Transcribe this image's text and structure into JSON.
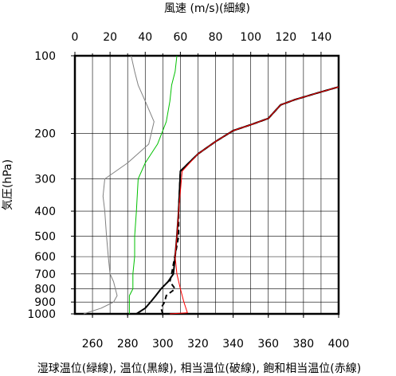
{
  "chart_data": {
    "type": "line",
    "top_axis_label": "風速 (m/s)(細線)",
    "bottom_axis_label": "湿球温位(緑線), 温位(黒線), 相当温位(破線), 飽和相当温位(赤線)",
    "ylabel": "気圧(hPa)",
    "y_log": true,
    "ylim": [
      1000,
      100
    ],
    "xlim_theta": [
      250,
      400
    ],
    "xlim_wind": [
      0,
      150
    ],
    "theta_ticks": [
      260,
      280,
      300,
      320,
      340,
      360,
      380,
      400
    ],
    "wind_ticks": [
      0,
      20,
      40,
      60,
      80,
      100,
      120,
      140
    ],
    "pressure_ticks": [
      100,
      200,
      300,
      400,
      500,
      600,
      700,
      800,
      900,
      1000
    ],
    "gridlines": true,
    "series": [
      {
        "axis": "wind",
        "color": "#808080",
        "points": [
          [
            5,
            1000
          ],
          [
            15,
            950
          ],
          [
            22,
            900
          ],
          [
            24,
            850
          ],
          [
            23,
            800
          ],
          [
            22,
            750
          ],
          [
            20,
            700
          ],
          [
            19,
            600
          ],
          [
            18,
            500
          ],
          [
            17,
            400
          ],
          [
            16,
            350
          ],
          [
            17,
            300
          ],
          [
            30,
            260
          ],
          [
            42,
            220
          ],
          [
            45,
            180
          ],
          [
            40,
            150
          ],
          [
            36,
            130
          ],
          [
            34,
            115
          ],
          [
            32,
            100
          ]
        ]
      },
      {
        "axis": "theta",
        "color": "#00c000",
        "points": [
          [
            281,
            1000
          ],
          [
            281,
            925
          ],
          [
            281,
            850
          ],
          [
            283,
            800
          ],
          [
            283,
            750
          ],
          [
            283,
            700
          ],
          [
            284,
            600
          ],
          [
            284,
            500
          ],
          [
            285,
            400
          ],
          [
            286,
            300
          ],
          [
            290,
            260
          ],
          [
            297,
            220
          ],
          [
            302,
            180
          ],
          [
            304,
            150
          ],
          [
            305,
            130
          ],
          [
            307,
            115
          ],
          [
            308,
            100
          ]
        ]
      },
      {
        "axis": "theta",
        "color": "#000000",
        "points": [
          [
            285,
            1000
          ],
          [
            290,
            950
          ],
          [
            293,
            900
          ],
          [
            296,
            850
          ],
          [
            299,
            800
          ],
          [
            303,
            750
          ],
          [
            306,
            700
          ],
          [
            307,
            600
          ],
          [
            308,
            500
          ],
          [
            309,
            400
          ],
          [
            310,
            280
          ],
          [
            320,
            240
          ],
          [
            330,
            215
          ],
          [
            340,
            195
          ],
          [
            350,
            185
          ],
          [
            360,
            175
          ],
          [
            367,
            155
          ],
          [
            375,
            148
          ],
          [
            387,
            140
          ],
          [
            400,
            132
          ]
        ]
      },
      {
        "axis": "theta",
        "color": "#000000",
        "dash": true,
        "points": [
          [
            300,
            1000
          ],
          [
            299,
            950
          ],
          [
            301,
            900
          ],
          [
            302,
            850
          ],
          [
            307,
            800
          ],
          [
            304,
            750
          ],
          [
            305,
            700
          ],
          [
            309,
            500
          ],
          [
            309,
            400
          ],
          [
            310,
            280
          ],
          [
            320,
            240
          ],
          [
            330,
            215
          ],
          [
            340,
            195
          ],
          [
            350,
            185
          ],
          [
            360,
            175
          ],
          [
            367,
            155
          ],
          [
            375,
            148
          ],
          [
            387,
            140
          ],
          [
            400,
            132
          ]
        ]
      },
      {
        "axis": "theta",
        "color": "#ff0000",
        "points": [
          [
            304,
            1000
          ],
          [
            314,
            990
          ],
          [
            312,
            900
          ],
          [
            310,
            800
          ],
          [
            308,
            700
          ],
          [
            307,
            600
          ],
          [
            308,
            500
          ],
          [
            309,
            400
          ],
          [
            311,
            280
          ],
          [
            320,
            240
          ],
          [
            330,
            215
          ],
          [
            340,
            195
          ],
          [
            350,
            185
          ],
          [
            360,
            175
          ],
          [
            367,
            155
          ],
          [
            375,
            148
          ],
          [
            387,
            140
          ],
          [
            400,
            132
          ]
        ]
      }
    ]
  }
}
